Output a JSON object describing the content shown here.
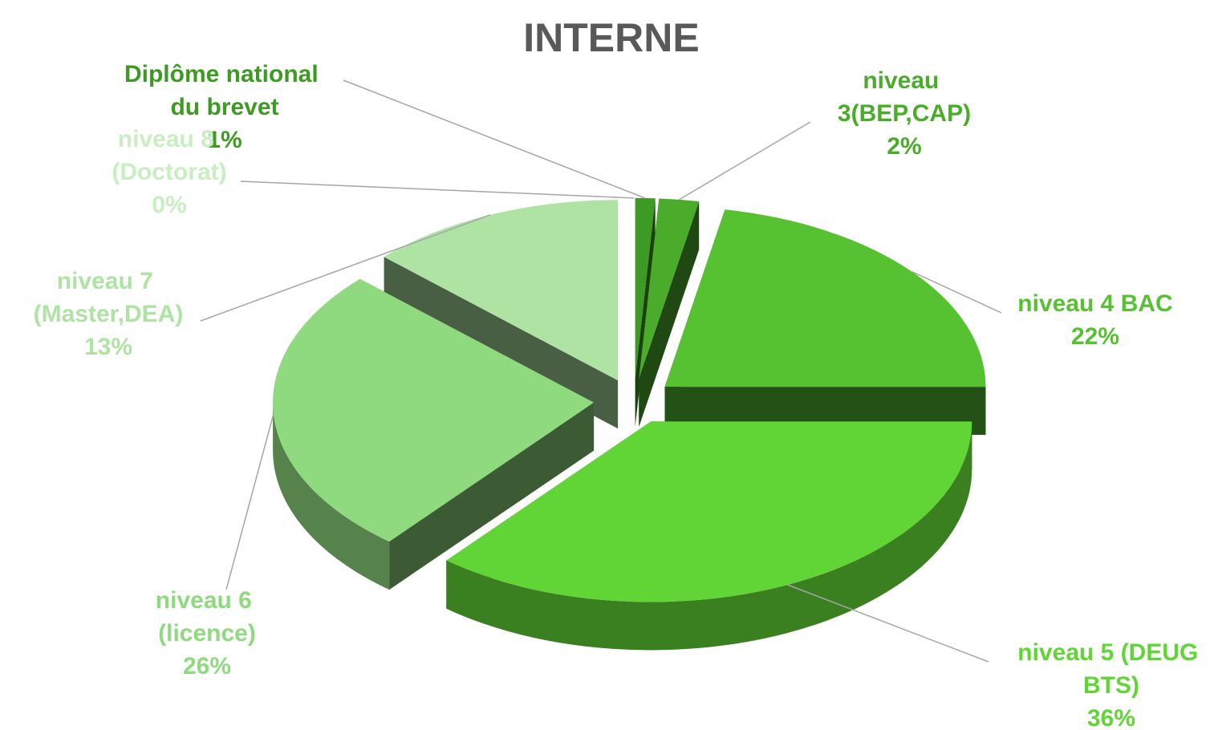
{
  "chart_data": {
    "type": "pie3d",
    "title": "INTERNE",
    "categories": [
      "Diplôme national du brevet",
      "niveau 3(BEP,CAP)",
      "niveau 4 BAC",
      "niveau 5 (DEUG BTS)",
      "niveau 6 (licence)",
      "niveau 7 (Master,DEA)",
      "niveau 8 (Doctorat)"
    ],
    "values": [
      1,
      2,
      22,
      36,
      26,
      13,
      0
    ],
    "value_labels": [
      "1%",
      "2%",
      "22%",
      "36%",
      "26%",
      "13%",
      "0%"
    ],
    "colors": [
      "#3d9b23",
      "#4aac2a",
      "#56c232",
      "#62d536",
      "#8fd97e",
      "#aee3a3",
      "#c9eec1"
    ]
  }
}
